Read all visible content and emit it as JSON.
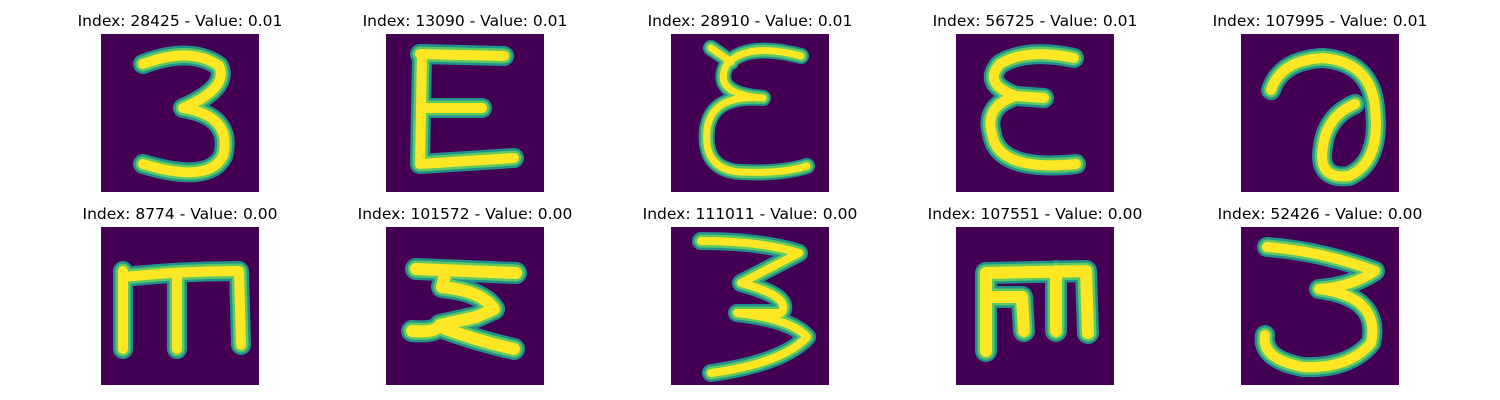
{
  "colors": {
    "background": "#440154",
    "stroke_edge": "#21918c",
    "stroke_mid": "#5ec962",
    "stroke_core": "#fde725"
  },
  "panels": [
    {
      "index": "28425",
      "value": "0.01",
      "title": "Index: 28425 - Value: 0.01"
    },
    {
      "index": "13090",
      "value": "0.01",
      "title": "Index: 13090 - Value: 0.01"
    },
    {
      "index": "28910",
      "value": "0.01",
      "title": "Index: 28910 - Value: 0.01"
    },
    {
      "index": "56725",
      "value": "0.01",
      "title": "Index: 56725 - Value: 0.01"
    },
    {
      "index": "107995",
      "value": "0.01",
      "title": "Index: 107995 - Value: 0.01"
    },
    {
      "index": "8774",
      "value": "0.00",
      "title": "Index: 8774 - Value: 0.00"
    },
    {
      "index": "101572",
      "value": "0.00",
      "title": "Index: 101572 - Value: 0.00"
    },
    {
      "index": "111011",
      "value": "0.00",
      "title": "Index: 111011 - Value: 0.00"
    },
    {
      "index": "107551",
      "value": "0.00",
      "title": "Index: 107551 - Value: 0.00"
    },
    {
      "index": "52426",
      "value": "0.00",
      "title": "Index: 52426 - Value: 0.00"
    }
  ]
}
